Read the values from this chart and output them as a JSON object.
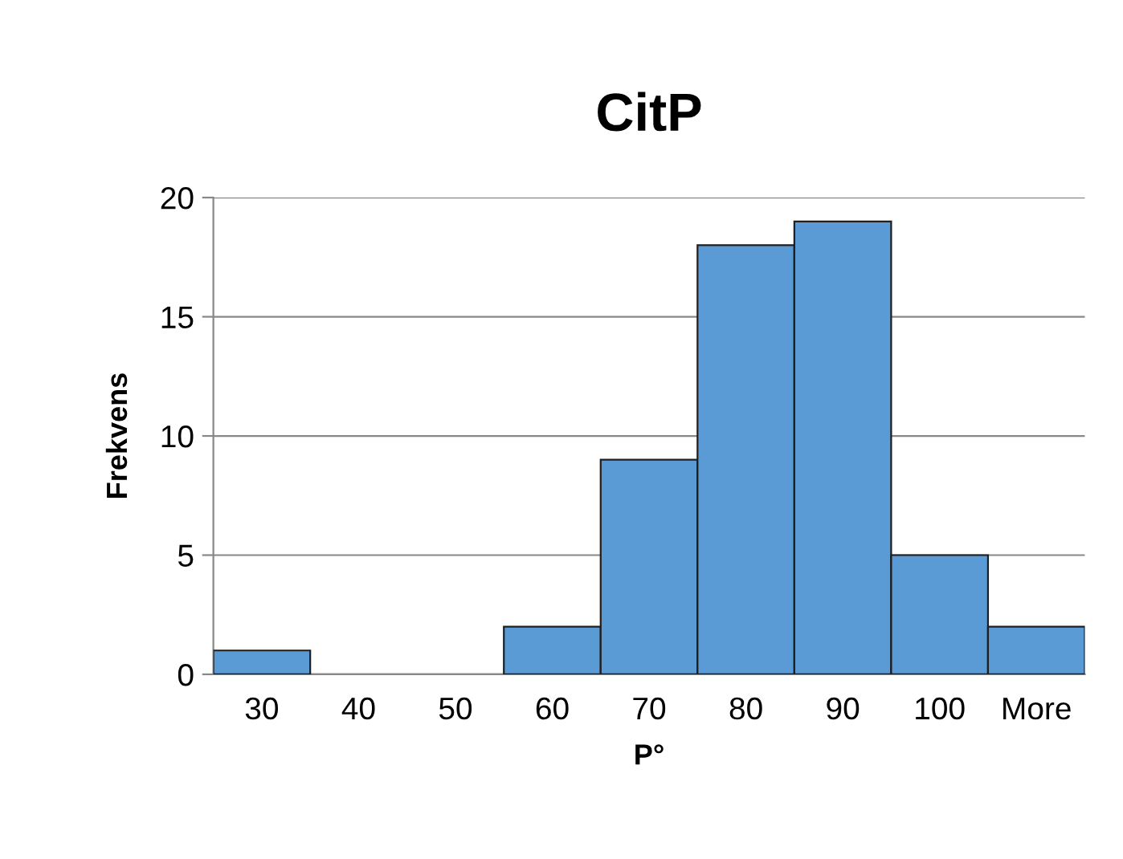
{
  "chart_data": {
    "type": "bar",
    "title": "CitP",
    "xlabel": "P°",
    "ylabel": "Frekvens",
    "categories": [
      "30",
      "40",
      "50",
      "60",
      "70",
      "80",
      "90",
      "100",
      "More"
    ],
    "values": [
      1,
      0,
      0,
      2,
      9,
      18,
      19,
      5,
      2
    ],
    "color": "#5b9bd5",
    "ylim": [
      0,
      20
    ],
    "yticks": [
      0,
      5,
      10,
      15,
      20
    ],
    "grid": "y",
    "legend": false
  }
}
